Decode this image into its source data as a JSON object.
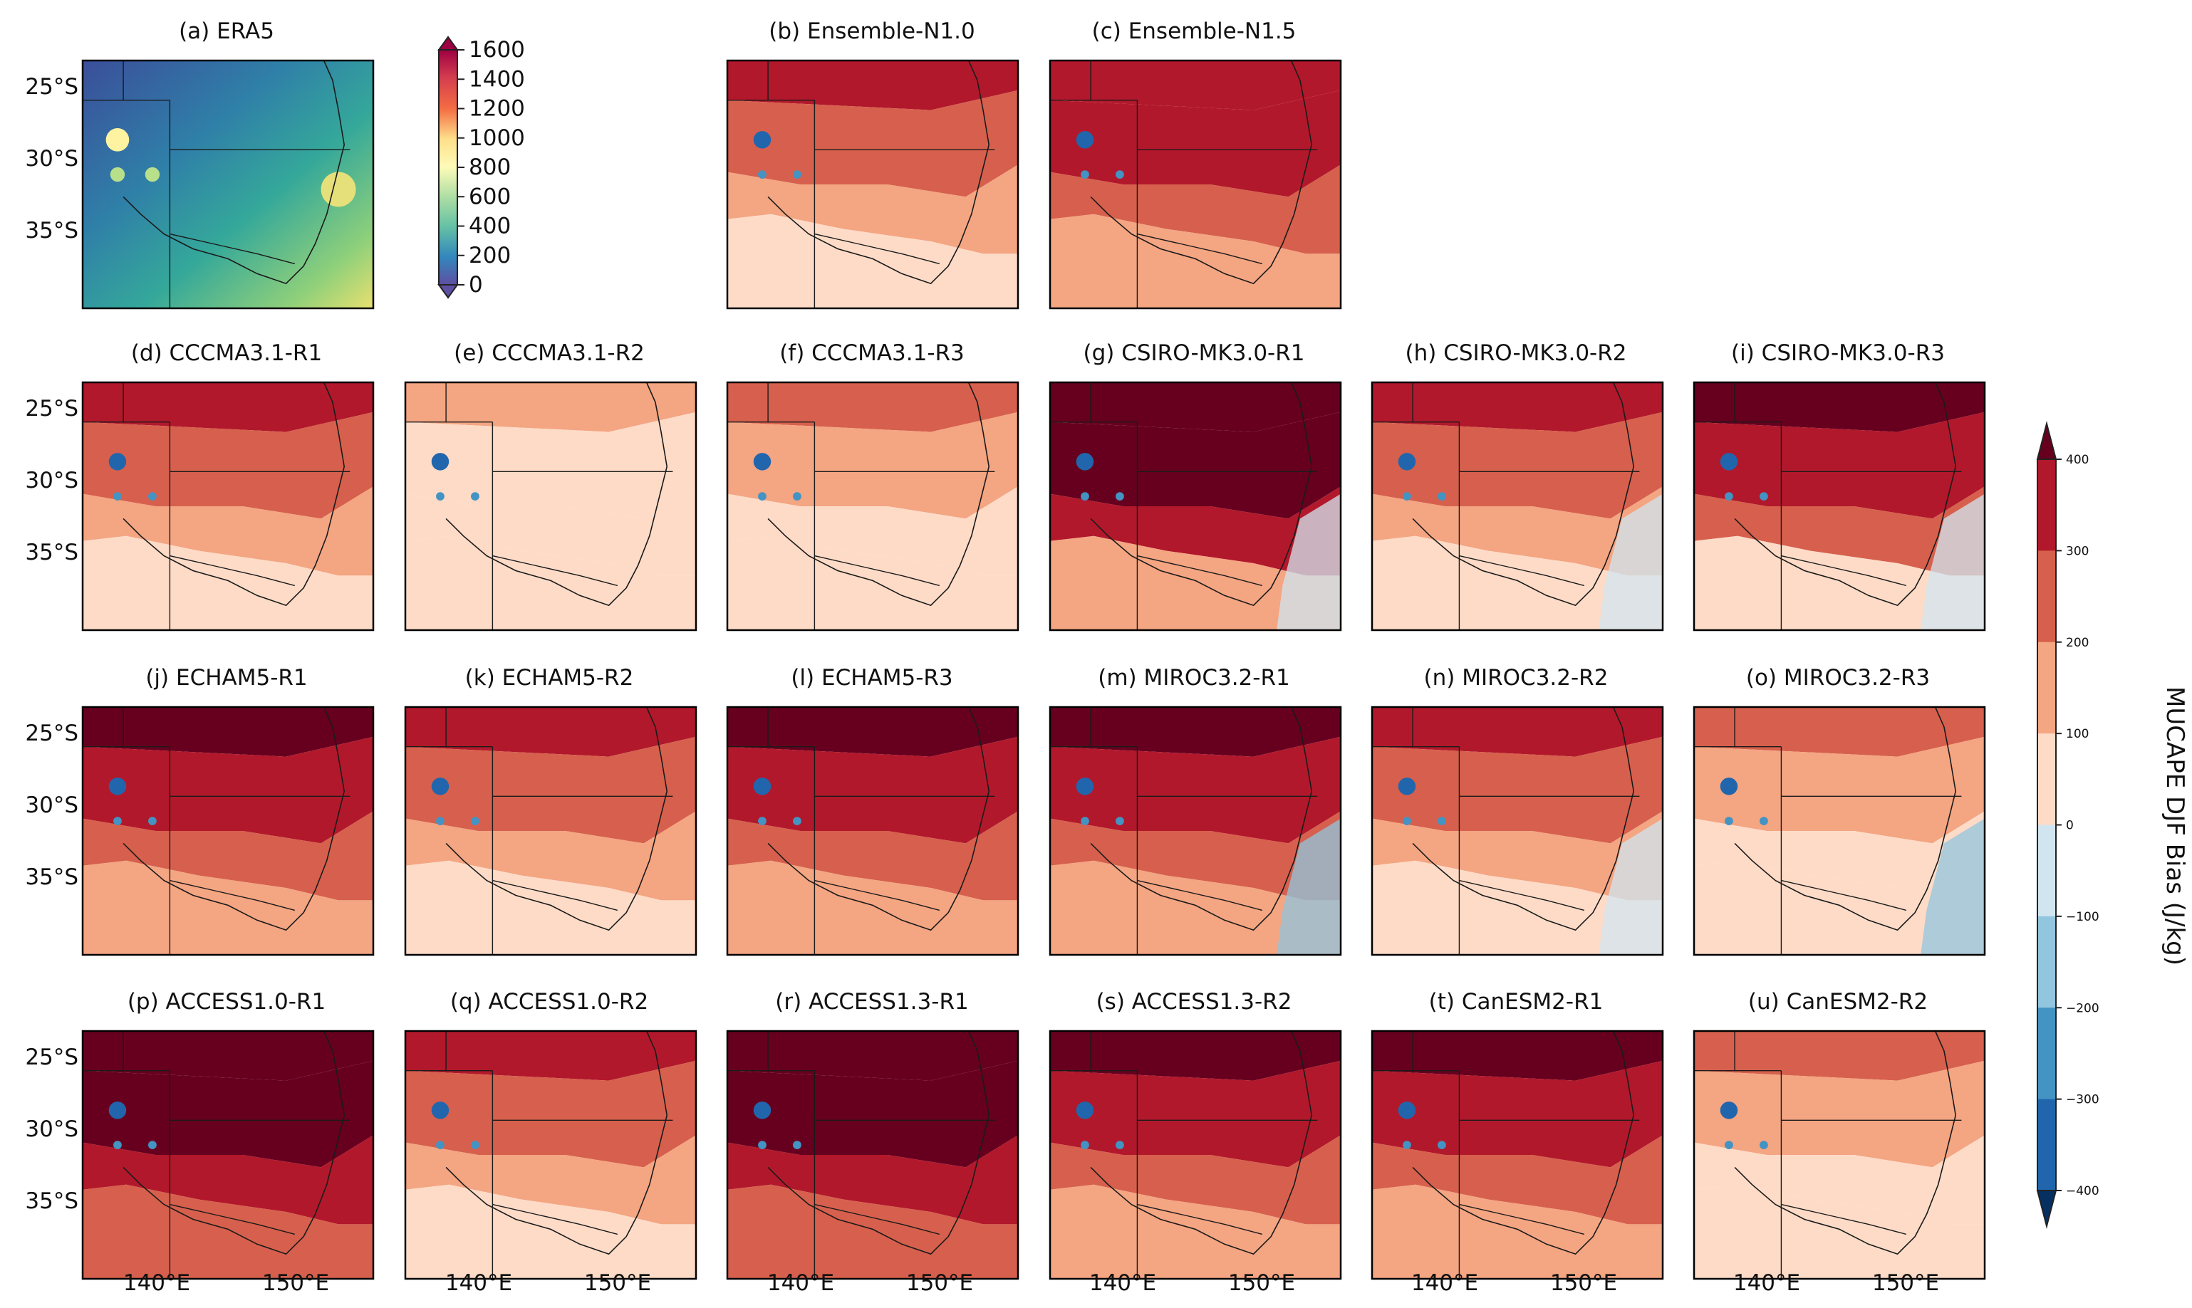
{
  "figure": {
    "colorbar_left": {
      "ticks": [
        "1600",
        "1400",
        "1200",
        "1000",
        "800",
        "600",
        "400",
        "200",
        "0"
      ]
    },
    "colorbar_right": {
      "label": "MUCAPE DJF Bias (J/kg)",
      "ticks": [
        "400",
        "300",
        "200",
        "100",
        "0",
        "−100",
        "−200",
        "−300",
        "−400"
      ],
      "colors": [
        "#67001f",
        "#b2182b",
        "#d6604d",
        "#f4a582",
        "#fddbc7",
        "#d1e5f0",
        "#92c5de",
        "#4393c3",
        "#2166ac",
        "#053061"
      ]
    },
    "lat_ticks": [
      "25°S",
      "30°S",
      "35°S"
    ],
    "lon_ticks": [
      "140°E",
      "150°E"
    ],
    "panels": [
      {
        "id": "a",
        "title": "(a) ERA5"
      },
      {
        "id": "b",
        "title": "(b) Ensemble-N1.0"
      },
      {
        "id": "c",
        "title": "(c) Ensemble-N1.5"
      },
      {
        "id": "d",
        "title": "(d) CCCMA3.1-R1"
      },
      {
        "id": "e",
        "title": "(e) CCCMA3.1-R2"
      },
      {
        "id": "f",
        "title": "(f) CCCMA3.1-R3"
      },
      {
        "id": "g",
        "title": "(g) CSIRO-MK3.0-R1"
      },
      {
        "id": "h",
        "title": "(h) CSIRO-MK3.0-R2"
      },
      {
        "id": "i",
        "title": "(i) CSIRO-MK3.0-R3"
      },
      {
        "id": "j",
        "title": "(j) ECHAM5-R1"
      },
      {
        "id": "k",
        "title": "(k) ECHAM5-R2"
      },
      {
        "id": "l",
        "title": "(l) ECHAM5-R3"
      },
      {
        "id": "m",
        "title": "(m) MIROC3.2-R1"
      },
      {
        "id": "n",
        "title": "(n) MIROC3.2-R2"
      },
      {
        "id": "o",
        "title": "(o) MIROC3.2-R3"
      },
      {
        "id": "p",
        "title": "(p) ACCESS1.0-R1"
      },
      {
        "id": "q",
        "title": "(q) ACCESS1.0-R2"
      },
      {
        "id": "r",
        "title": "(r) ACCESS1.3-R1"
      },
      {
        "id": "s",
        "title": "(s) ACCESS1.3-R2"
      },
      {
        "id": "t",
        "title": "(t) CanESM2-R1"
      },
      {
        "id": "u",
        "title": "(u) CanESM2-R2"
      }
    ]
  }
}
